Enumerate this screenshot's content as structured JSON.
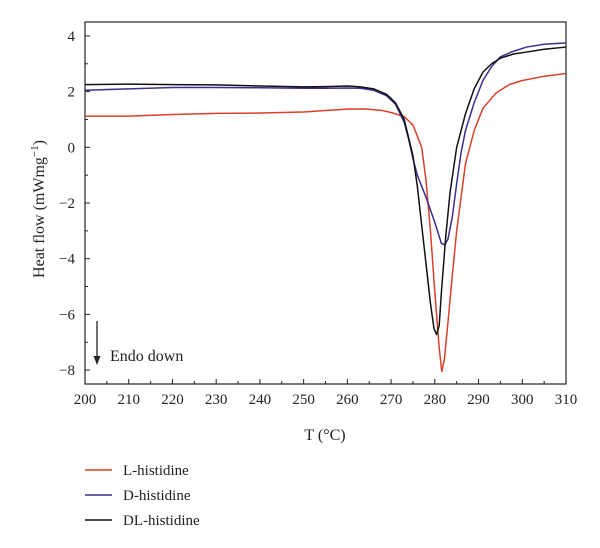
{
  "chart_data": {
    "type": "line",
    "title": "",
    "xlabel": "T (°C)",
    "ylabel": "Heat flow (mWmg",
    "ylabel_sup": "−1",
    "ylabel_close": ")",
    "xlim": [
      200,
      310
    ],
    "ylim": [
      -8.5,
      4.5
    ],
    "xticks": [
      200,
      210,
      220,
      230,
      240,
      250,
      260,
      270,
      280,
      290,
      300,
      310
    ],
    "yticks": [
      -8,
      -6,
      -4,
      -2,
      0,
      2,
      4
    ],
    "ytick_labels": [
      "−8",
      "−6",
      "−4",
      "−2",
      "0",
      "2",
      "4"
    ],
    "grid": false,
    "legend_position": "below",
    "annotation": "Endo down",
    "series": [
      {
        "name": "L-histidine",
        "color": "#d9402a",
        "points": [
          [
            200,
            1.12
          ],
          [
            210,
            1.12
          ],
          [
            220,
            1.18
          ],
          [
            230,
            1.22
          ],
          [
            240,
            1.23
          ],
          [
            250,
            1.27
          ],
          [
            255,
            1.32
          ],
          [
            260,
            1.37
          ],
          [
            264,
            1.38
          ],
          [
            268,
            1.32
          ],
          [
            270,
            1.25
          ],
          [
            273,
            1.1
          ],
          [
            275,
            0.8
          ],
          [
            277,
            0.0
          ],
          [
            278,
            -1.2
          ],
          [
            279,
            -3.0
          ],
          [
            280,
            -5.2
          ],
          [
            281,
            -7.2
          ],
          [
            281.6,
            -8.05
          ],
          [
            282.2,
            -7.6
          ],
          [
            283,
            -6.3
          ],
          [
            284,
            -4.6
          ],
          [
            285,
            -3.0
          ],
          [
            287,
            -0.6
          ],
          [
            289,
            0.6
          ],
          [
            291,
            1.4
          ],
          [
            294,
            1.95
          ],
          [
            297,
            2.25
          ],
          [
            300,
            2.4
          ],
          [
            305,
            2.55
          ],
          [
            310,
            2.65
          ]
        ]
      },
      {
        "name": "D-histidine",
        "color": "#3a2f8f",
        "points": [
          [
            200,
            2.05
          ],
          [
            210,
            2.1
          ],
          [
            220,
            2.15
          ],
          [
            230,
            2.15
          ],
          [
            240,
            2.14
          ],
          [
            250,
            2.12
          ],
          [
            255,
            2.12
          ],
          [
            260,
            2.13
          ],
          [
            263,
            2.12
          ],
          [
            266,
            2.05
          ],
          [
            269,
            1.85
          ],
          [
            271,
            1.55
          ],
          [
            273,
            0.9
          ],
          [
            274,
            0.3
          ],
          [
            275,
            -0.4
          ],
          [
            276,
            -1.0
          ],
          [
            278,
            -1.8
          ],
          [
            280,
            -2.7
          ],
          [
            281.5,
            -3.45
          ],
          [
            282.3,
            -3.5
          ],
          [
            283,
            -3.3
          ],
          [
            284,
            -2.5
          ],
          [
            285,
            -1.3
          ],
          [
            286,
            -0.2
          ],
          [
            287,
            0.6
          ],
          [
            289,
            1.6
          ],
          [
            291,
            2.4
          ],
          [
            293,
            2.9
          ],
          [
            295,
            3.25
          ],
          [
            298,
            3.45
          ],
          [
            301,
            3.6
          ],
          [
            305,
            3.7
          ],
          [
            310,
            3.75
          ]
        ]
      },
      {
        "name": "DL-histidine",
        "color": "#111111",
        "points": [
          [
            200,
            2.25
          ],
          [
            210,
            2.27
          ],
          [
            220,
            2.25
          ],
          [
            230,
            2.24
          ],
          [
            240,
            2.2
          ],
          [
            250,
            2.17
          ],
          [
            255,
            2.18
          ],
          [
            260,
            2.2
          ],
          [
            263,
            2.17
          ],
          [
            266,
            2.1
          ],
          [
            269,
            1.9
          ],
          [
            271,
            1.6
          ],
          [
            273,
            1.0
          ],
          [
            275,
            -0.3
          ],
          [
            276,
            -1.4
          ],
          [
            277,
            -2.8
          ],
          [
            278,
            -4.2
          ],
          [
            279,
            -5.6
          ],
          [
            279.8,
            -6.5
          ],
          [
            280.4,
            -6.72
          ],
          [
            281,
            -6.4
          ],
          [
            281.6,
            -5.0
          ],
          [
            282.5,
            -3.2
          ],
          [
            283.5,
            -1.6
          ],
          [
            285,
            0.0
          ],
          [
            287,
            1.2
          ],
          [
            289,
            2.1
          ],
          [
            291,
            2.7
          ],
          [
            293,
            3.0
          ],
          [
            295,
            3.2
          ],
          [
            298,
            3.35
          ],
          [
            301,
            3.42
          ],
          [
            305,
            3.52
          ],
          [
            310,
            3.6
          ]
        ]
      }
    ]
  }
}
